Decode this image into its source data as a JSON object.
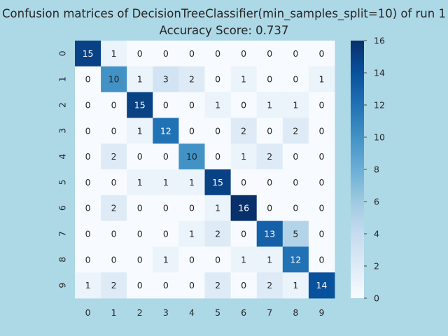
{
  "chart_data": {
    "type": "heatmap",
    "title": "Confusion matrices of DecisionTreeClassifier(min_samples_split=10) of run 1",
    "subtitle": "Accuracy Score: 0.737",
    "x_tick_labels": [
      "0",
      "1",
      "2",
      "3",
      "4",
      "5",
      "6",
      "7",
      "8",
      "9"
    ],
    "y_tick_labels": [
      "0",
      "1",
      "2",
      "3",
      "4",
      "5",
      "6",
      "7",
      "8",
      "9"
    ],
    "matrix": [
      [
        15,
        1,
        0,
        0,
        0,
        0,
        0,
        0,
        0,
        0
      ],
      [
        0,
        10,
        1,
        3,
        2,
        0,
        1,
        0,
        0,
        1
      ],
      [
        0,
        0,
        15,
        0,
        0,
        1,
        0,
        1,
        1,
        0
      ],
      [
        0,
        0,
        1,
        12,
        0,
        0,
        2,
        0,
        2,
        0
      ],
      [
        0,
        2,
        0,
        0,
        10,
        0,
        1,
        2,
        0,
        0
      ],
      [
        0,
        0,
        1,
        1,
        1,
        15,
        0,
        0,
        0,
        0
      ],
      [
        0,
        2,
        0,
        0,
        0,
        1,
        16,
        0,
        0,
        0
      ],
      [
        0,
        0,
        0,
        0,
        1,
        2,
        0,
        13,
        5,
        0
      ],
      [
        0,
        0,
        0,
        1,
        0,
        0,
        1,
        1,
        12,
        0
      ],
      [
        1,
        2,
        0,
        0,
        0,
        2,
        0,
        2,
        1,
        14
      ]
    ],
    "colorbar": {
      "min": 0,
      "max": 16,
      "ticks": [
        0,
        2,
        4,
        6,
        8,
        10,
        12,
        14,
        16
      ],
      "colormap": "Blues"
    },
    "annotations": true,
    "grid": false
  }
}
